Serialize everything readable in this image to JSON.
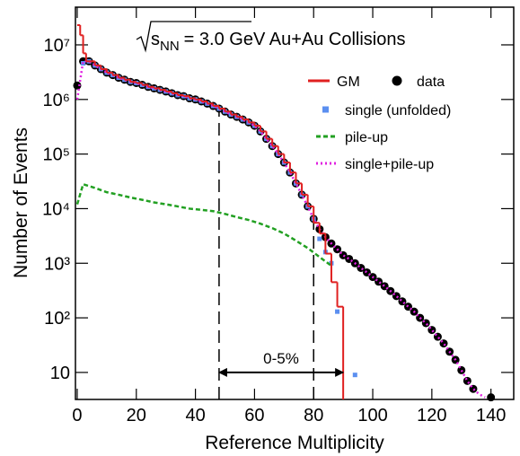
{
  "chart_data": {
    "type": "line",
    "title_symbol": "s",
    "title_subscript": "NN",
    "title": "= 3.0 GeV Au+Au Collisions",
    "x_label": "Reference Multiplicity",
    "y_label": "Number of Events",
    "log_y": true,
    "xlim": [
      -0.6,
      147.7
    ],
    "ylim": [
      3.2,
      49000000
    ],
    "xticks": [
      0,
      20,
      40,
      60,
      80,
      100,
      120,
      140
    ],
    "yticks": [
      10,
      {
        "value": 100,
        "label": "10²"
      },
      {
        "value": 1000,
        "label": "10³"
      },
      {
        "value": 10000,
        "label": "10⁴"
      },
      {
        "value": 100000,
        "label": "10⁵"
      },
      {
        "value": 1000000,
        "label": "10⁶"
      },
      {
        "value": 10000000,
        "label": "10⁷"
      }
    ],
    "series": [
      {
        "name": "GM",
        "color": "#e02020",
        "style": "step",
        "x": [
          0,
          1,
          2,
          3,
          4,
          6,
          8,
          10,
          12,
          14,
          16,
          18,
          20,
          22,
          24,
          26,
          28,
          30,
          32,
          34,
          36,
          38,
          40,
          42,
          44,
          46,
          48,
          50,
          52,
          54,
          56,
          58,
          60,
          62,
          64,
          66,
          68,
          70,
          72,
          74,
          76,
          78,
          80,
          82,
          84,
          86,
          88
        ],
        "values": [
          23000000,
          15000000,
          7000000,
          5000000,
          5000000,
          4200000,
          3600000,
          3100000,
          2800000,
          2500000,
          2300000,
          2100000,
          2000000,
          1850000,
          1700000,
          1600000,
          1500000,
          1400000,
          1300000,
          1200000,
          1150000,
          1050000,
          1000000,
          920000,
          840000,
          760000,
          680000,
          600000,
          530000,
          480000,
          430000,
          380000,
          330000,
          260000,
          190000,
          140000,
          100000,
          70000,
          46000,
          29000,
          18000,
          11000,
          5500,
          3500,
          1500,
          450,
          160
        ]
      },
      {
        "name": "data",
        "color": "#000000",
        "style": "circle",
        "x": [
          0,
          2,
          4,
          6,
          8,
          10,
          12,
          14,
          16,
          18,
          20,
          22,
          24,
          26,
          28,
          30,
          32,
          34,
          36,
          38,
          40,
          42,
          44,
          46,
          48,
          50,
          52,
          54,
          56,
          58,
          60,
          62,
          64,
          66,
          68,
          70,
          72,
          74,
          76,
          78,
          80,
          82,
          84,
          86,
          88,
          90,
          92,
          94,
          96,
          98,
          100,
          102,
          104,
          106,
          108,
          110,
          112,
          114,
          116,
          118,
          120,
          122,
          124,
          126,
          128,
          130,
          132,
          134,
          140
        ],
        "values": [
          1800000,
          5000000,
          5000000,
          4200000,
          3600000,
          3100000,
          2800000,
          2500000,
          2300000,
          2100000,
          2000000,
          1850000,
          1700000,
          1600000,
          1500000,
          1400000,
          1300000,
          1200000,
          1150000,
          1050000,
          1000000,
          920000,
          840000,
          760000,
          680000,
          600000,
          530000,
          480000,
          430000,
          380000,
          330000,
          260000,
          190000,
          140000,
          100000,
          70000,
          46000,
          29000,
          18000,
          11000,
          6500,
          4200,
          3000,
          2300,
          1800,
          1400,
          1200,
          1000,
          820,
          680,
          560,
          460,
          380,
          310,
          250,
          200,
          160,
          130,
          100,
          80,
          60,
          45,
          34,
          24,
          17,
          11,
          7,
          5,
          3.5
        ]
      },
      {
        "name": "single (unfolded)",
        "color": "#5b8ff0",
        "style": "square",
        "x": [
          2,
          4,
          6,
          8,
          10,
          12,
          14,
          16,
          18,
          20,
          22,
          24,
          26,
          28,
          30,
          32,
          34,
          36,
          38,
          40,
          42,
          44,
          46,
          48,
          50,
          52,
          54,
          56,
          58,
          60,
          62,
          64,
          66,
          68,
          70,
          72,
          74,
          76,
          78,
          80,
          82,
          84,
          86,
          88,
          94
        ],
        "values": [
          4600000,
          5000000,
          4200000,
          3600000,
          3100000,
          2800000,
          2500000,
          2300000,
          2100000,
          2000000,
          1850000,
          1700000,
          1600000,
          1500000,
          1400000,
          1300000,
          1200000,
          1150000,
          1050000,
          1000000,
          920000,
          840000,
          760000,
          680000,
          600000,
          530000,
          480000,
          430000,
          380000,
          330000,
          260000,
          190000,
          140000,
          100000,
          70000,
          46000,
          29000,
          18000,
          11000,
          6500,
          2800,
          1600,
          1000,
          130,
          9
        ]
      },
      {
        "name": "pile-up",
        "color": "#22a022",
        "style": "dashed",
        "x": [
          0,
          2,
          6,
          10,
          14,
          18,
          22,
          26,
          30,
          34,
          38,
          42,
          46,
          50,
          54,
          58,
          62,
          66,
          70,
          74,
          78,
          82,
          86
        ],
        "values": [
          12000,
          28000,
          24000,
          20000,
          18000,
          16000,
          14500,
          13000,
          12000,
          11000,
          10000,
          9500,
          9000,
          8000,
          7000,
          6200,
          5300,
          4400,
          3500,
          2600,
          1900,
          1300,
          900
        ]
      },
      {
        "name": "single+pile-up",
        "color": "#e020e0",
        "style": "dotted",
        "x": [
          0,
          2,
          4,
          6,
          8,
          10,
          12,
          14,
          16,
          18,
          20,
          22,
          24,
          26,
          28,
          30,
          32,
          34,
          36,
          38,
          40,
          42,
          44,
          46,
          48,
          50,
          52,
          54,
          56,
          58,
          60,
          62,
          64,
          66,
          68,
          70,
          72,
          74,
          76,
          78,
          80,
          82,
          84,
          86,
          88,
          90,
          92,
          94,
          96,
          98,
          100,
          102,
          104,
          106,
          108,
          110,
          112,
          114,
          116,
          118,
          120,
          122,
          124,
          126,
          128,
          130,
          132,
          134,
          136,
          138
        ],
        "values": [
          1000000,
          5000000,
          5000000,
          4200000,
          3600000,
          3100000,
          2800000,
          2500000,
          2300000,
          2100000,
          2000000,
          1850000,
          1700000,
          1600000,
          1500000,
          1400000,
          1300000,
          1200000,
          1150000,
          1050000,
          1000000,
          920000,
          840000,
          760000,
          680000,
          600000,
          530000,
          480000,
          430000,
          380000,
          330000,
          260000,
          190000,
          140000,
          100000,
          70000,
          46000,
          29000,
          18000,
          11000,
          6500,
          4200,
          3000,
          2300,
          1800,
          1400,
          1200,
          1000,
          820,
          680,
          560,
          460,
          380,
          310,
          250,
          200,
          160,
          130,
          100,
          80,
          60,
          45,
          34,
          24,
          17,
          11,
          7,
          5,
          4,
          3.5
        ]
      }
    ],
    "markers": [
      {
        "x": 48,
        "y": 680000
      },
      {
        "x": 80,
        "y": 6500
      }
    ],
    "range_arrow": {
      "x": [
        48,
        90
      ],
      "y": 10,
      "label": "0-5%"
    }
  }
}
